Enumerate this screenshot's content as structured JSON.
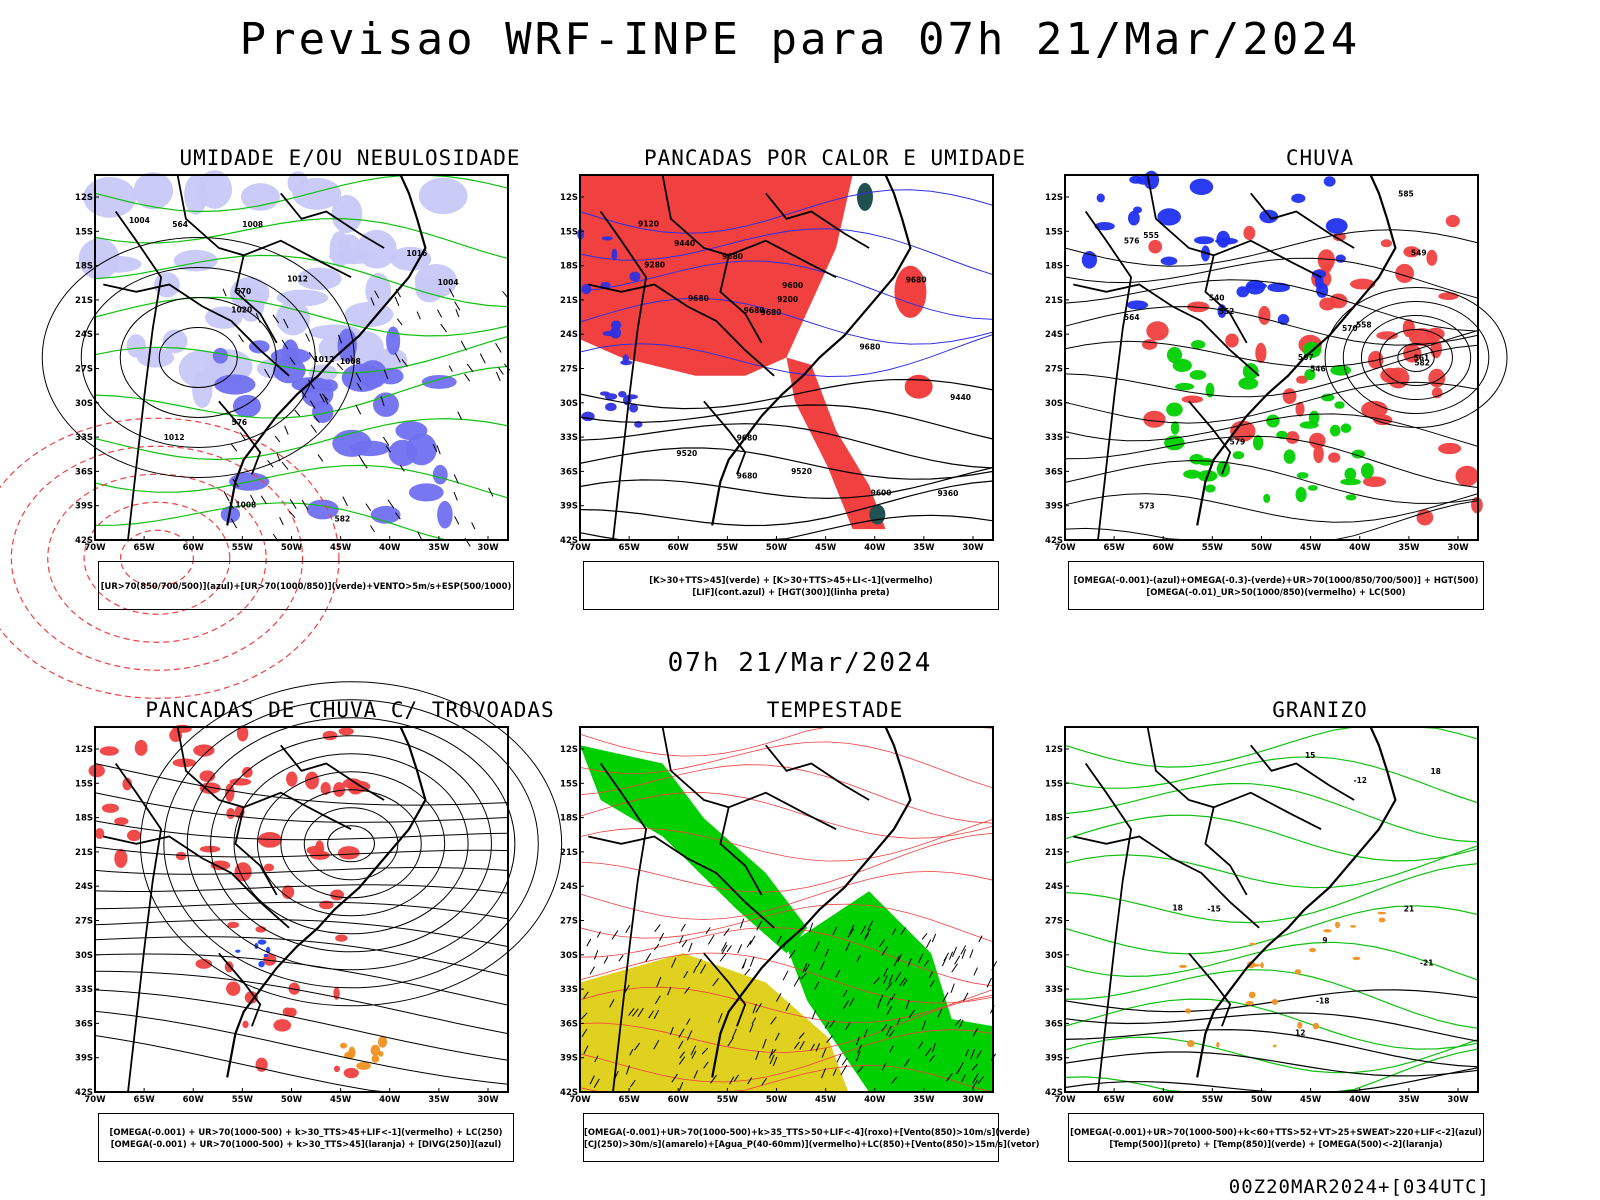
{
  "title": "Previsao WRF-INPE  para 07h 21/Mar/2024",
  "mid_date": "07h 21/Mar/2024",
  "footer": "00Z20MAR2024+[034UTC]",
  "axes": {
    "lat_labels": [
      "12S",
      "15S",
      "18S",
      "21S",
      "24S",
      "27S",
      "30S",
      "33S",
      "36S",
      "39S",
      "42S"
    ],
    "lon_labels": [
      "70W",
      "65W",
      "60W",
      "55W",
      "50W",
      "45W",
      "40W",
      "35W",
      "30W"
    ]
  },
  "panels": [
    {
      "title": "UMIDADE E/OU NEBULOSIDADE",
      "legend": [
        "[UR>70(850/700/500)](azul)+[UR>70(1000/850)](verde)+VENTO>5m/s+ESP(500/1000)"
      ],
      "contour_labels": [
        "1012",
        "1008",
        "1012",
        "1008",
        "1004",
        "1008",
        "1004",
        "1012",
        "1016",
        "1020",
        "576",
        "570",
        "564",
        "582"
      ]
    },
    {
      "title": "PANCADAS POR CALOR E UMIDADE",
      "legend": [
        "[K>30+TTS>45](verde) + [K>30+TTS>45+LI<-1](vermelho)",
        "[LIF](cont.azul) + [HGT(300)](linha preta)"
      ],
      "contour_labels": [
        "9680",
        "9680",
        "9680",
        "9680",
        "9680",
        "9680",
        "9600",
        "9520",
        "9440",
        "9360",
        "9280",
        "9200",
        "9120",
        "9600",
        "9520",
        "9440",
        "9680",
        "9680"
      ]
    },
    {
      "title": "CHUVA",
      "legend": [
        "[OMEGA(-0.001)-(azul)+OMEGA(-0.3)-(verde)+UR>70(1000/850/700/500)] + HGT(500)",
        "[OMEGA(-0.01)_UR>50(1000/850)(vermelho) + LC(500)"
      ],
      "contour_labels": [
        "585",
        "582",
        "579",
        "576",
        "573",
        "570",
        "567",
        "564",
        "561",
        "558",
        "555",
        "552",
        "549",
        "546",
        "540"
      ]
    },
    {
      "title": "PANCADAS DE CHUVA C/ TROVOADAS",
      "legend": [
        "[OMEGA(-0.001) + UR>70(1000-500) + k>30_TTS>45+LIF<-1](vermelho) + LC(250)",
        "[OMEGA(-0.001) + UR>70(1000-500) + k>30_TTS>45](laranja) + [DIVG(250)](azul)"
      ],
      "contour_labels": []
    },
    {
      "title": "TEMPESTADE",
      "legend": [
        "[OMEGA(-0.001)+UR>70(1000-500)+k>35_TTS>50+LIF<-4](roxo)+[Vento(850)>10m/s](verde)",
        "[CJ(250)>30m/s](amarelo)+[Agua_P(40-60mm)](vermelho)+LC(850)+[Vento(850)>15m/s](vetor)"
      ],
      "contour_labels": []
    },
    {
      "title": "GRANIZO",
      "legend": [
        "[OMEGA(-0.001)+UR>70(1000-500)+k<60+TTS>52+VT>25+SWEAT>220+LIF<-2](azul)",
        "[Temp(500)](preto) + [Temp(850)](verde) + [OMEGA(500)<-2](laranja)"
      ],
      "contour_labels": [
        "-12",
        "-15",
        "-18",
        "-21",
        "18",
        "15",
        "12",
        "9",
        "21",
        "18"
      ]
    }
  ],
  "colors": {
    "blue_fill": "#7070f0",
    "lightblue_fill": "#c8c8f8",
    "green": "#10c010",
    "bright_green": "#00d000",
    "red": "#f04040",
    "orange": "#f09020",
    "yellow": "#e0d020",
    "darkteal": "#205050",
    "black": "#000000"
  }
}
